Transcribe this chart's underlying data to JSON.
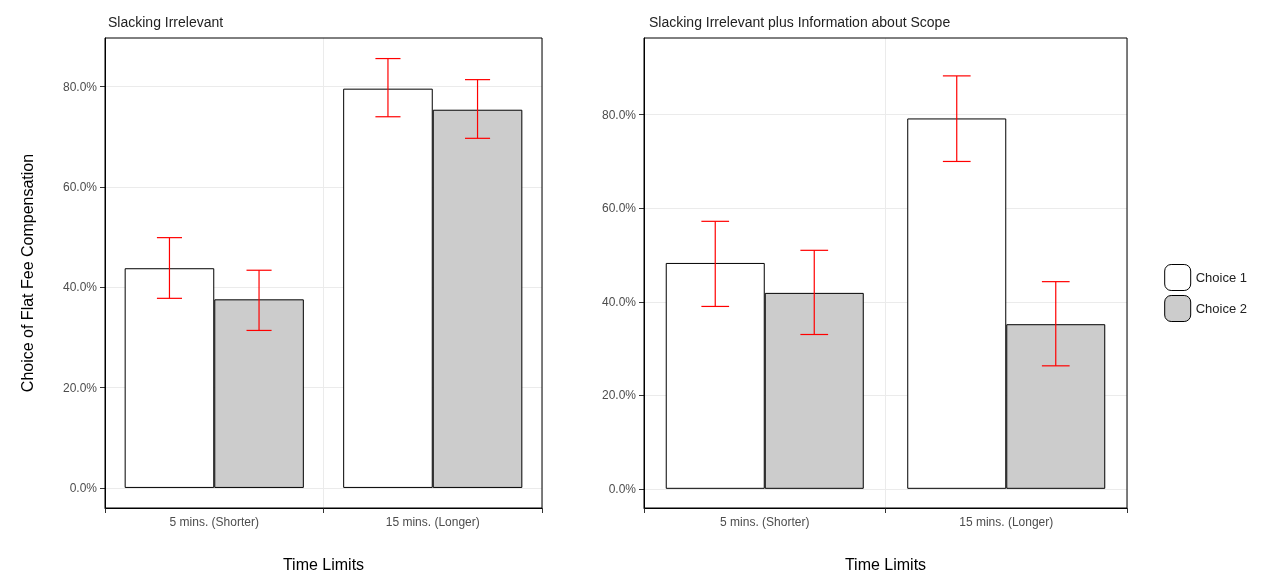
{
  "chart_data": [
    {
      "type": "bar",
      "title": "Slacking Irrelevant",
      "xlabel": "Time Limits",
      "ylabel": "Choice of Flat Fee Compensation",
      "categories": [
        "5 mins. (Shorter)",
        "15 mins. (Longer)"
      ],
      "series": [
        {
          "color": "#ffffff",
          "values": [
            43.8,
            79.6
          ],
          "errors": [
            [
              37.8,
              49.9
            ],
            [
              74.0,
              85.6
            ]
          ]
        },
        {
          "color": "#cccccc",
          "values": [
            37.6,
            75.4
          ],
          "errors": [
            [
              31.4,
              43.4
            ],
            [
              69.7,
              81.4
            ]
          ]
        }
      ],
      "ylim": [
        -4,
        89.7
      ],
      "yticks": [
        {
          "value": 0,
          "label": "0.0%"
        },
        {
          "value": 20,
          "label": "20.0%"
        },
        {
          "value": 40,
          "label": "40.0%"
        },
        {
          "value": 60,
          "label": "60.0%"
        },
        {
          "value": 80,
          "label": "80.0%"
        }
      ],
      "grid": true,
      "legend": false
    },
    {
      "type": "bar",
      "title": "Slacking Irrelevant plus Information about Scope",
      "xlabel": "Time Limits",
      "categories": [
        "5 mins. (Shorter)",
        "15 mins. (Longer)"
      ],
      "series": [
        {
          "name": "Choice 1",
          "color": "#ffffff",
          "values": [
            48.3,
            79.2
          ],
          "errors": [
            [
              39.0,
              57.2
            ],
            [
              70.0,
              88.3
            ]
          ]
        },
        {
          "name": "Choice 2",
          "color": "#cccccc",
          "values": [
            41.9,
            35.2
          ],
          "errors": [
            [
              33.0,
              51.0
            ],
            [
              26.3,
              44.3
            ]
          ]
        }
      ],
      "ylim": [
        -4.1,
        96.4
      ],
      "yticks": [
        {
          "value": 0,
          "label": "0.0%"
        },
        {
          "value": 20,
          "label": "20.0%"
        },
        {
          "value": 40,
          "label": "40.0%"
        },
        {
          "value": 60,
          "label": "60.0%"
        },
        {
          "value": 80,
          "label": "80.0%"
        }
      ],
      "grid": true,
      "legend": "right"
    }
  ]
}
